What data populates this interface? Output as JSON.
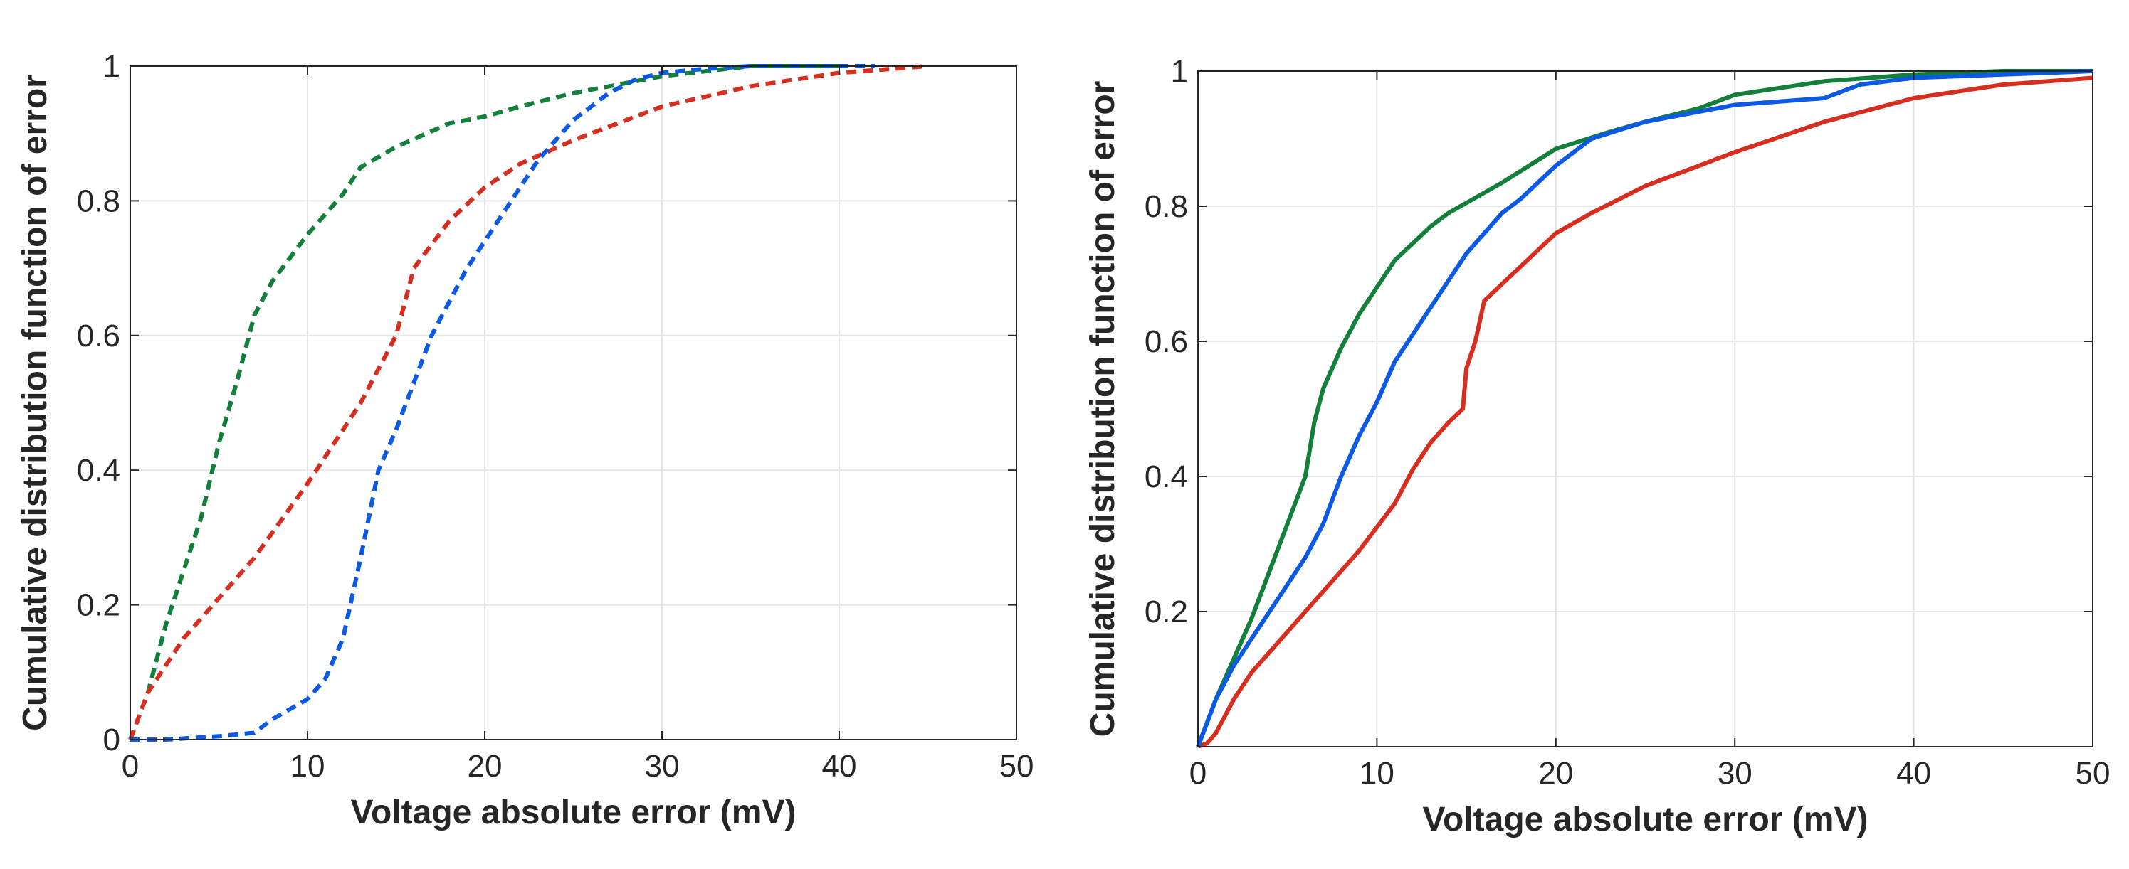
{
  "chart_data": [
    {
      "type": "line",
      "xlabel": "Voltage absolute error (mV)",
      "ylabel": "Cumulative distribution function of error",
      "xlim": [
        0,
        50
      ],
      "ylim": [
        0,
        1
      ],
      "xticks": [
        "0",
        "10",
        "20",
        "30",
        "40",
        "50"
      ],
      "yticks": [
        "0",
        "0.2",
        "0.4",
        "0.6",
        "0.8",
        "1"
      ],
      "grid": true,
      "line_style": "dashed",
      "series": [
        {
          "color": "#127f3a",
          "x": [
            0,
            1,
            2,
            3,
            4,
            5,
            6,
            7,
            8,
            10,
            12,
            13,
            15,
            18,
            20,
            22,
            25,
            28,
            30,
            35,
            38,
            40
          ],
          "y": [
            0,
            0.07,
            0.17,
            0.25,
            0.33,
            0.44,
            0.53,
            0.63,
            0.68,
            0.75,
            0.81,
            0.85,
            0.88,
            0.915,
            0.925,
            0.94,
            0.96,
            0.975,
            0.985,
            1.0,
            1.0,
            1.0
          ]
        },
        {
          "color": "#d62f20",
          "x": [
            0,
            1,
            3,
            5,
            7,
            10,
            13,
            15,
            16,
            18,
            20,
            22,
            25,
            30,
            35,
            40,
            45
          ],
          "y": [
            0,
            0.07,
            0.15,
            0.21,
            0.27,
            0.38,
            0.5,
            0.6,
            0.7,
            0.77,
            0.82,
            0.855,
            0.89,
            0.94,
            0.97,
            0.99,
            1.0
          ]
        },
        {
          "color": "#0c59e3",
          "x": [
            0,
            2,
            5,
            7,
            8,
            10,
            11,
            12,
            13,
            14,
            15,
            17,
            19,
            21,
            23,
            25,
            27,
            28.5,
            30,
            32,
            35,
            38,
            42
          ],
          "y": [
            0,
            0,
            0.005,
            0.01,
            0.03,
            0.06,
            0.09,
            0.15,
            0.27,
            0.4,
            0.46,
            0.6,
            0.7,
            0.78,
            0.86,
            0.92,
            0.96,
            0.98,
            0.99,
            0.995,
            1.0,
            1.0,
            1.0
          ]
        }
      ]
    },
    {
      "type": "line",
      "xlabel": "Voltage absolute error (mV)",
      "ylabel": "Cumulative distribution function of error",
      "xlim": [
        0,
        50
      ],
      "ylim": [
        0,
        1
      ],
      "xticks": [
        "0",
        "10",
        "20",
        "30",
        "40",
        "50"
      ],
      "yticks": [
        "0.2",
        "0.4",
        "0.6",
        "0.8",
        "1"
      ],
      "grid": true,
      "line_style": "solid",
      "series": [
        {
          "color": "#127f3a",
          "x": [
            0,
            1,
            2,
            3,
            4,
            5,
            6,
            6.5,
            7,
            8,
            9,
            10,
            11,
            12,
            13,
            14,
            15,
            17,
            20,
            23,
            25,
            28,
            30,
            35,
            40,
            45,
            50
          ],
          "y": [
            0,
            0.07,
            0.13,
            0.19,
            0.26,
            0.33,
            0.4,
            0.48,
            0.53,
            0.59,
            0.64,
            0.68,
            0.72,
            0.745,
            0.77,
            0.79,
            0.805,
            0.835,
            0.885,
            0.91,
            0.925,
            0.945,
            0.965,
            0.985,
            0.995,
            1.0,
            1.0
          ]
        },
        {
          "color": "#d62f20",
          "x": [
            0,
            0.5,
            1,
            2,
            3,
            5,
            7,
            9,
            11,
            12,
            13,
            14,
            14.8,
            15,
            15.5,
            16,
            18,
            20,
            22,
            25,
            30,
            35,
            40,
            45,
            50
          ],
          "y": [
            0,
            0.005,
            0.02,
            0.07,
            0.11,
            0.17,
            0.23,
            0.29,
            0.36,
            0.41,
            0.45,
            0.48,
            0.5,
            0.56,
            0.6,
            0.66,
            0.71,
            0.76,
            0.79,
            0.83,
            0.88,
            0.925,
            0.96,
            0.98,
            0.99
          ]
        },
        {
          "color": "#0c59e3",
          "x": [
            0,
            1,
            2,
            3,
            4,
            5,
            6,
            7,
            8,
            9,
            10,
            11,
            12,
            13,
            14,
            15,
            16,
            17,
            18,
            20,
            22,
            25,
            30,
            35,
            37,
            40,
            45,
            50
          ],
          "y": [
            0,
            0.07,
            0.12,
            0.16,
            0.2,
            0.24,
            0.28,
            0.33,
            0.4,
            0.46,
            0.51,
            0.57,
            0.61,
            0.65,
            0.69,
            0.73,
            0.76,
            0.79,
            0.81,
            0.86,
            0.9,
            0.925,
            0.95,
            0.96,
            0.98,
            0.99,
            0.995,
            1.0
          ]
        }
      ]
    }
  ]
}
